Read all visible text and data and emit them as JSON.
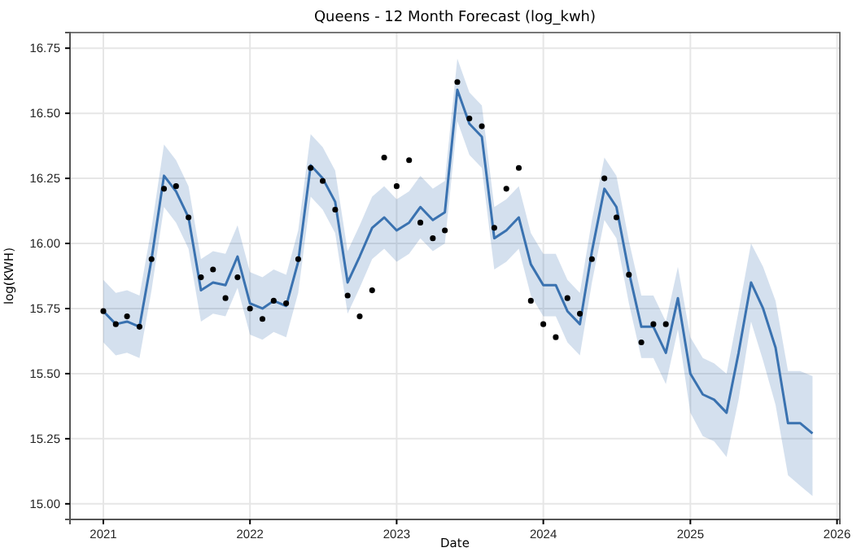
{
  "chart_data": {
    "type": "line",
    "title": "Queens - 12 Month Forecast (log_kwh)",
    "xlabel": "Date",
    "ylabel": "log(KWH)",
    "xlim": [
      "2020-10-10",
      "2026-01-08"
    ],
    "xticks": [
      "2021",
      "2022",
      "2023",
      "2024",
      "2025",
      "2026"
    ],
    "ylim": [
      14.94,
      16.81
    ],
    "yticks": [
      {
        "value": 15,
        "label": "15.00"
      },
      {
        "value": 15.25,
        "label": "15.25"
      },
      {
        "value": 15.5,
        "label": "15.50"
      },
      {
        "value": 15.75,
        "label": "15.75"
      },
      {
        "value": 16,
        "label": "16.00"
      },
      {
        "value": 16.25,
        "label": "16.25"
      },
      {
        "value": 16.5,
        "label": "16.50"
      },
      {
        "value": 16.75,
        "label": "16.75"
      }
    ],
    "grid": true,
    "series": [
      {
        "color": "#3a72b0",
        "marker": "none",
        "line_style": "solid",
        "x": [
          "2021-01",
          "2021-02",
          "2021-03",
          "2021-04",
          "2021-05",
          "2021-06",
          "2021-07",
          "2021-08",
          "2021-09",
          "2021-10",
          "2021-11",
          "2021-12",
          "2022-01",
          "2022-02",
          "2022-03",
          "2022-04",
          "2022-05",
          "2022-06",
          "2022-07",
          "2022-08",
          "2022-09",
          "2022-10",
          "2022-11",
          "2022-12",
          "2023-01",
          "2023-02",
          "2023-03",
          "2023-04",
          "2023-05",
          "2023-06",
          "2023-07",
          "2023-08",
          "2023-09",
          "2023-10",
          "2023-11",
          "2023-12",
          "2024-01",
          "2024-02",
          "2024-03",
          "2024-04",
          "2024-05",
          "2024-06",
          "2024-07",
          "2024-08",
          "2024-09",
          "2024-10",
          "2024-11",
          "2024-12",
          "2025-01",
          "2025-02",
          "2025-03",
          "2025-04",
          "2025-05",
          "2025-06",
          "2025-07",
          "2025-08",
          "2025-09",
          "2025-10",
          "2025-11"
        ],
        "values": [
          15.74,
          15.69,
          15.7,
          15.68,
          15.94,
          16.26,
          16.2,
          16.1,
          15.82,
          15.85,
          15.84,
          15.95,
          15.77,
          15.75,
          15.78,
          15.76,
          15.93,
          16.3,
          16.25,
          16.16,
          15.85,
          15.95,
          16.06,
          16.1,
          16.05,
          16.08,
          16.14,
          16.09,
          16.12,
          16.59,
          16.46,
          16.41,
          16.02,
          16.05,
          16.1,
          15.92,
          15.84,
          15.84,
          15.74,
          15.69,
          15.97,
          16.21,
          16.14,
          15.89,
          15.68,
          15.68,
          15.58,
          15.79,
          15.5,
          15.42,
          15.4,
          15.35,
          15.58,
          15.85,
          15.75,
          15.6,
          15.31,
          15.31,
          15.27
        ],
        "lower": [
          15.62,
          15.57,
          15.58,
          15.56,
          15.82,
          16.14,
          16.08,
          15.98,
          15.7,
          15.73,
          15.72,
          15.83,
          15.65,
          15.63,
          15.66,
          15.64,
          15.81,
          16.18,
          16.13,
          16.04,
          15.73,
          15.83,
          15.94,
          15.98,
          15.93,
          15.96,
          16.02,
          15.97,
          16.0,
          16.47,
          16.34,
          16.29,
          15.9,
          15.93,
          15.98,
          15.8,
          15.72,
          15.72,
          15.62,
          15.57,
          15.85,
          16.09,
          16.02,
          15.77,
          15.56,
          15.56,
          15.46,
          15.67,
          15.35,
          15.26,
          15.24,
          15.18,
          15.4,
          15.7,
          15.55,
          15.38,
          15.11,
          15.07,
          15.03
        ],
        "upper": [
          15.86,
          15.81,
          15.82,
          15.8,
          16.06,
          16.38,
          16.32,
          16.22,
          15.94,
          15.97,
          15.96,
          16.07,
          15.89,
          15.87,
          15.9,
          15.88,
          16.05,
          16.42,
          16.37,
          16.28,
          15.97,
          16.07,
          16.18,
          16.22,
          16.17,
          16.2,
          16.26,
          16.21,
          16.24,
          16.71,
          16.58,
          16.53,
          16.14,
          16.17,
          16.22,
          16.04,
          15.96,
          15.96,
          15.86,
          15.81,
          16.09,
          16.33,
          16.26,
          16.01,
          15.8,
          15.8,
          15.7,
          15.91,
          15.64,
          15.56,
          15.54,
          15.5,
          15.74,
          16.0,
          15.91,
          15.78,
          15.51,
          15.51,
          15.49
        ]
      },
      {
        "type": "scatter",
        "color": "#000000",
        "marker": "circle",
        "x": [
          "2021-01",
          "2021-02",
          "2021-03",
          "2021-04",
          "2021-05",
          "2021-06",
          "2021-07",
          "2021-08",
          "2021-09",
          "2021-10",
          "2021-11",
          "2021-12",
          "2022-01",
          "2022-02",
          "2022-03",
          "2022-04",
          "2022-05",
          "2022-06",
          "2022-07",
          "2022-08",
          "2022-09",
          "2022-10",
          "2022-11",
          "2022-12",
          "2023-01",
          "2023-02",
          "2023-03",
          "2023-04",
          "2023-05",
          "2023-06",
          "2023-07",
          "2023-08",
          "2023-09",
          "2023-10",
          "2023-11",
          "2023-12",
          "2024-01",
          "2024-02",
          "2024-03",
          "2024-04",
          "2024-05",
          "2024-06",
          "2024-07",
          "2024-08",
          "2024-09",
          "2024-10",
          "2024-11"
        ],
        "values": [
          15.74,
          15.69,
          15.72,
          15.68,
          15.94,
          16.21,
          16.22,
          16.1,
          15.87,
          15.9,
          15.79,
          15.87,
          15.75,
          15.71,
          15.78,
          15.77,
          15.94,
          16.29,
          16.24,
          16.13,
          15.8,
          15.72,
          15.82,
          16.33,
          16.22,
          16.32,
          16.08,
          16.02,
          16.05,
          16.62,
          16.48,
          16.45,
          16.06,
          16.21,
          16.29,
          15.78,
          15.69,
          15.64,
          15.79,
          15.73,
          15.94,
          16.25,
          16.1,
          15.88,
          15.62,
          15.69,
          15.69
        ]
      }
    ]
  }
}
